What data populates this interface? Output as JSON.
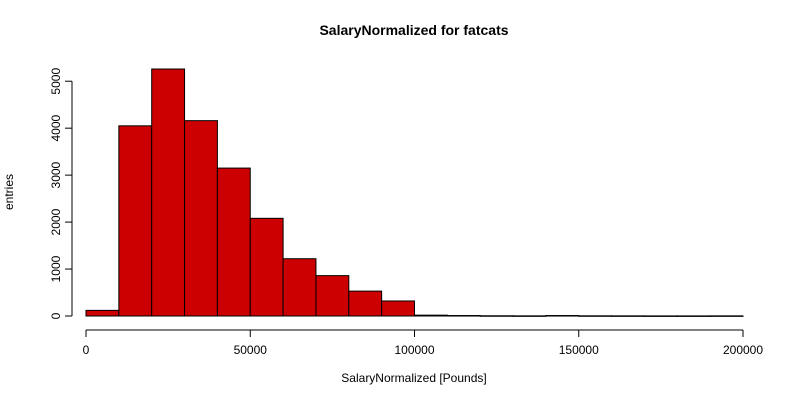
{
  "chart_data": {
    "type": "bar",
    "title": "SalaryNormalized for fatcats",
    "xlabel": "SalaryNormalized [Pounds]",
    "ylabel": "entries",
    "bin_edges": [
      0,
      10000,
      20000,
      30000,
      40000,
      50000,
      60000,
      70000,
      80000,
      90000,
      100000,
      110000,
      120000,
      130000,
      140000,
      150000,
      160000,
      170000,
      180000,
      190000,
      200000
    ],
    "values": [
      120,
      4050,
      5260,
      4160,
      3150,
      2080,
      1220,
      860,
      530,
      320,
      18,
      10,
      5,
      3,
      10,
      4,
      3,
      2,
      2,
      3
    ],
    "xlim": [
      0,
      200000
    ],
    "ylim": [
      0,
      5260
    ],
    "xticks": [
      0,
      50000,
      100000,
      150000,
      200000
    ],
    "xtick_labels": [
      "0",
      "50000",
      "100000",
      "150000",
      "200000"
    ],
    "yticks": [
      0,
      1000,
      2000,
      3000,
      4000,
      5000
    ],
    "ytick_labels": [
      "0",
      "1000",
      "2000",
      "3000",
      "4000",
      "5000"
    ],
    "bar_color": "#cc0000",
    "grid": false,
    "legend": "none"
  }
}
